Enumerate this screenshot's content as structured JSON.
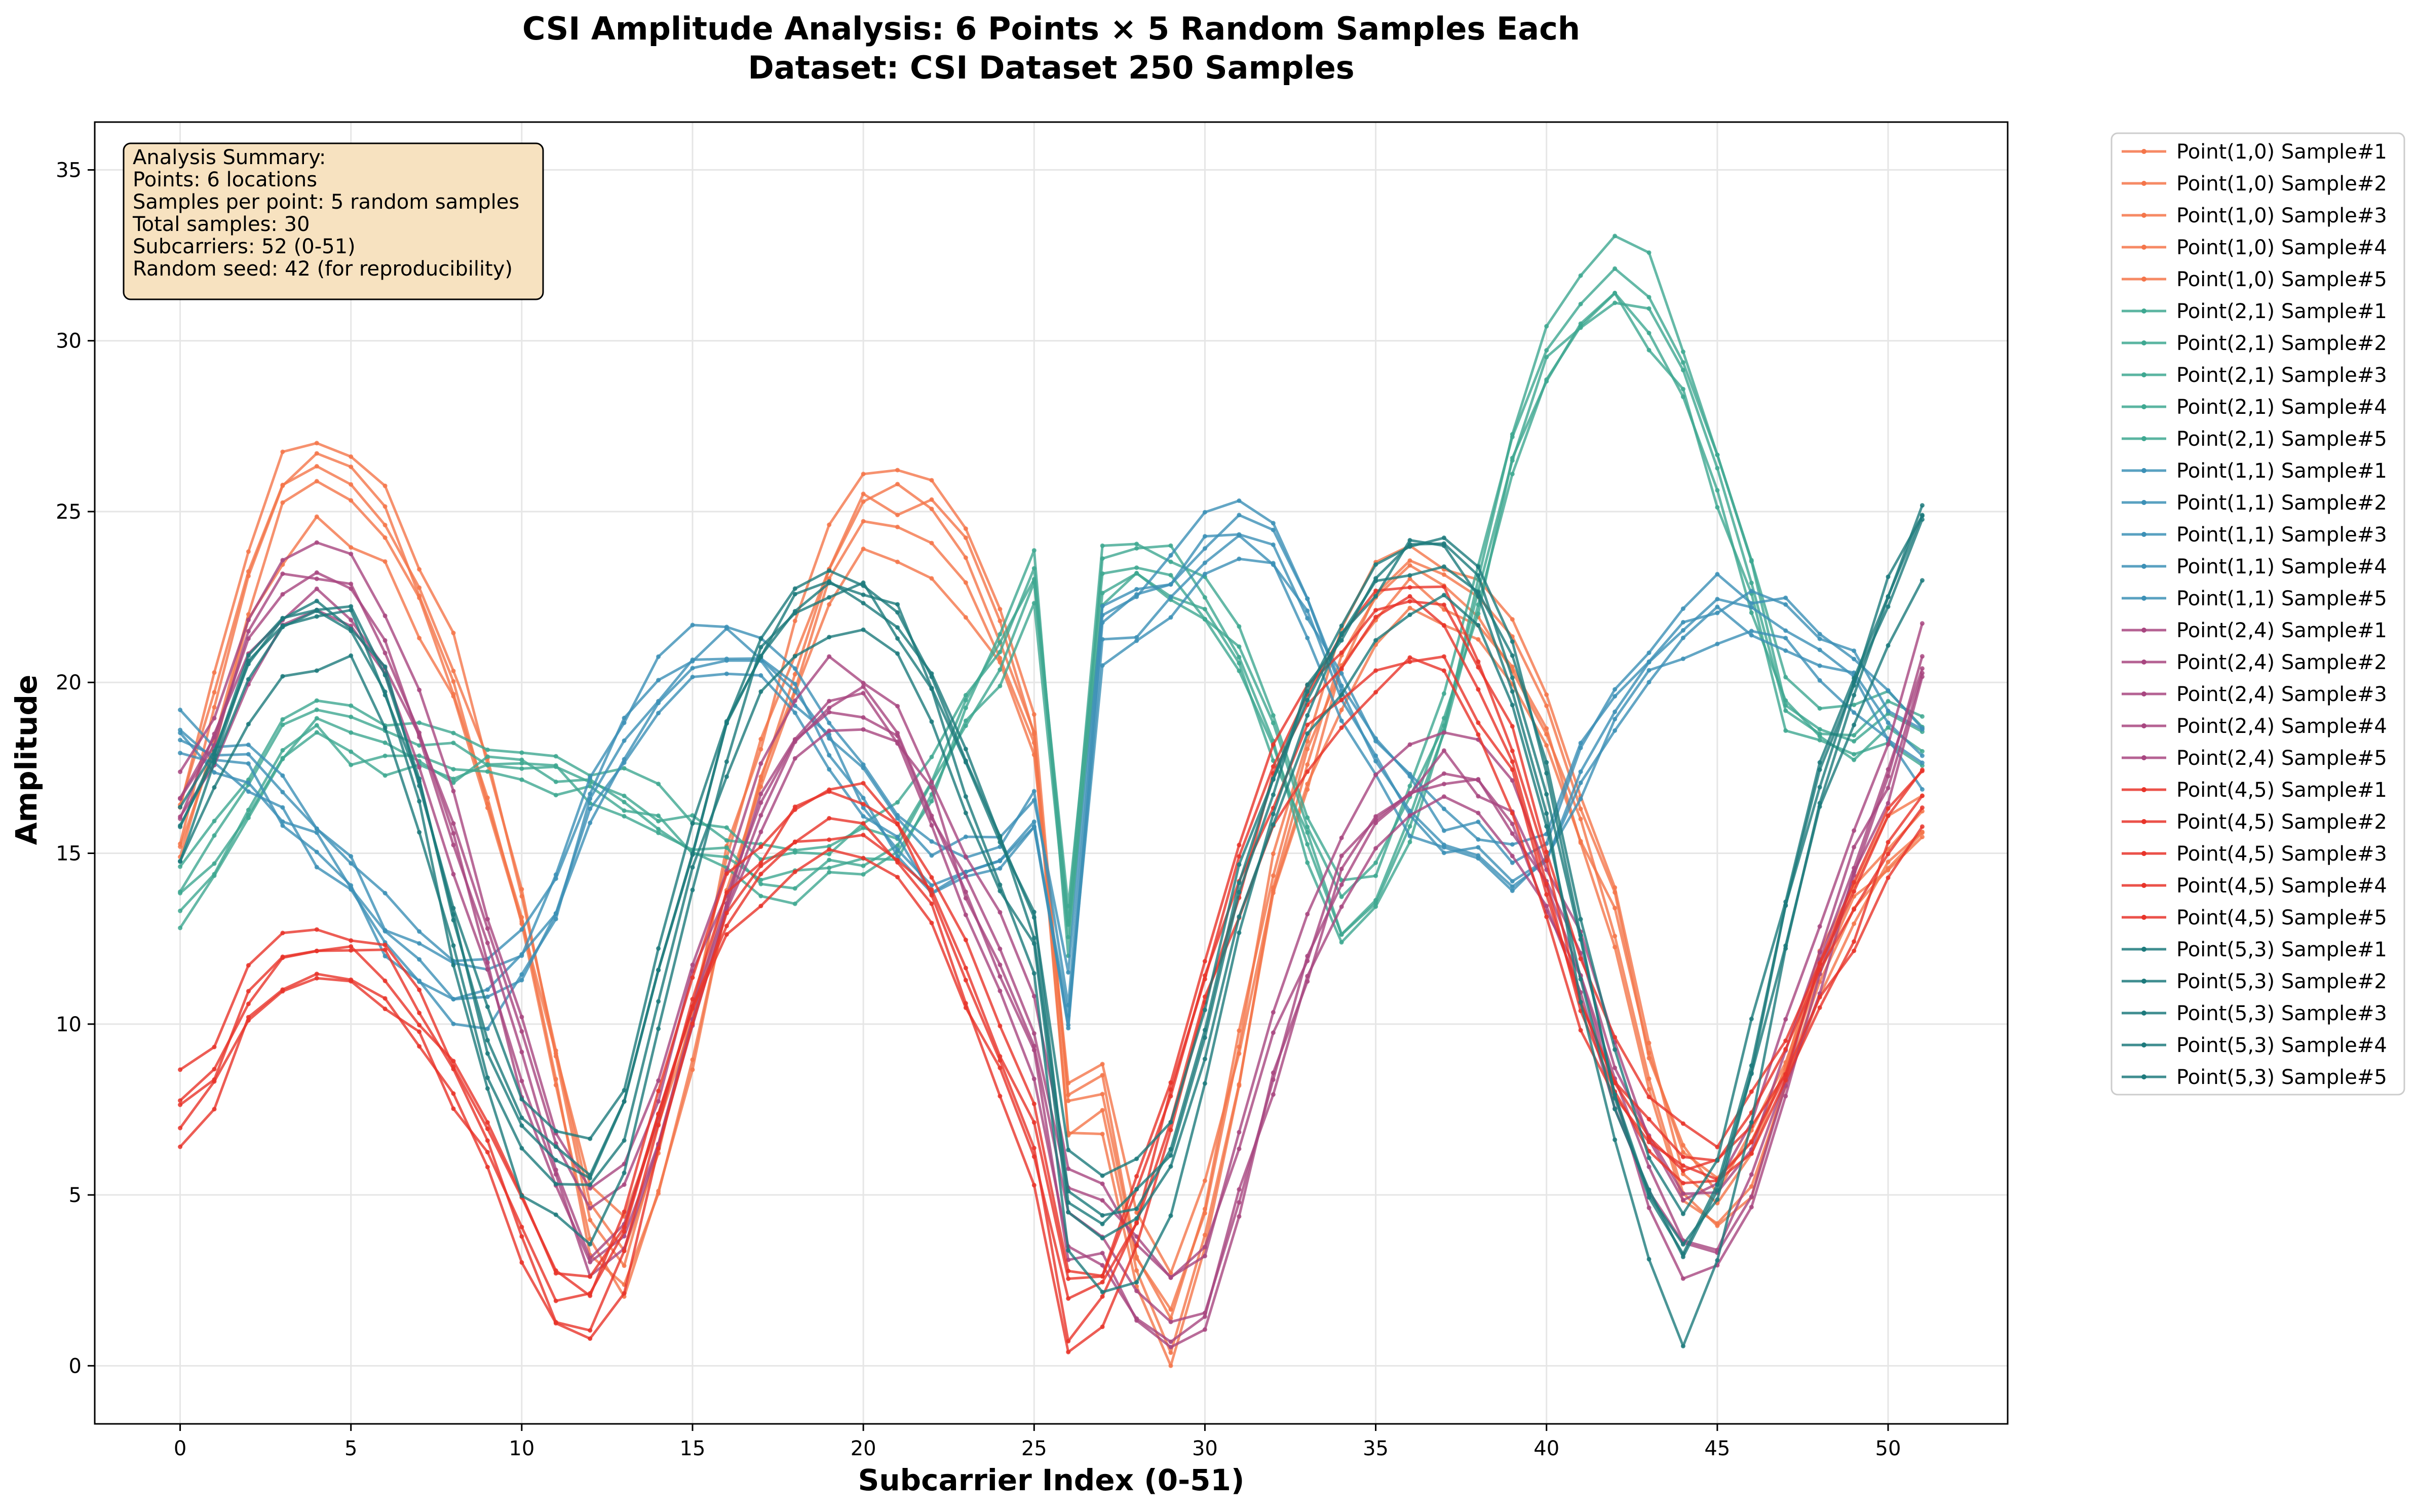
{
  "chart_data": {
    "type": "line",
    "title_line1": "CSI Amplitude Analysis: 6 Points × 5 Random Samples Each",
    "title_line2": "Dataset: CSI Dataset 250 Samples",
    "xlabel": "Subcarrier Index (0-51)",
    "ylabel": "Amplitude",
    "xlim": [
      -2.5,
      53.5
    ],
    "ylim": [
      -1.7,
      36.4
    ],
    "xticks": [
      0,
      5,
      10,
      15,
      20,
      25,
      30,
      35,
      40,
      45,
      50
    ],
    "yticks": [
      0,
      5,
      10,
      15,
      20,
      25,
      30,
      35
    ],
    "grid": true,
    "legend_placement": "outside-right",
    "summary": {
      "heading": "Analysis Summary:",
      "lines": [
        "Points: 6 locations",
        "Samples per point: 5 random samples",
        "Total samples: 30",
        "Subcarriers: 52 (0-51)",
        "Random seed: 42 (for reproducibility)"
      ]
    },
    "groups": [
      {
        "point": "Point(1,0)",
        "color": "#f4754a",
        "samples": [
          "Point(1,0) Sample#1",
          "Point(1,0) Sample#2",
          "Point(1,0) Sample#3",
          "Point(1,0) Sample#4",
          "Point(1,0) Sample#5"
        ],
        "base": [
          16.0,
          19.5,
          23.0,
          25.6,
          26.3,
          26.1,
          25.0,
          23.0,
          20.5,
          17.3,
          13.5,
          9.0,
          4.8,
          3.5,
          6.5,
          10.0,
          14.5,
          18.0,
          20.8,
          23.5,
          25.2,
          25.3,
          25.1,
          23.8,
          21.5,
          18.8,
          8.0,
          8.3,
          3.5,
          1.5,
          4.5,
          9.5,
          14.5,
          18.0,
          20.8,
          22.5,
          23.5,
          23.0,
          22.3,
          21.0,
          19.0,
          16.5,
          13.5,
          9.0,
          6.0,
          5.3,
          6.5,
          9.0,
          12.0,
          14.0,
          15.5,
          16.5
        ]
      },
      {
        "point": "Point(2,1)",
        "color": "#3ea891",
        "samples": [
          "Point(2,1) Sample#1",
          "Point(2,1) Sample#2",
          "Point(2,1) Sample#3",
          "Point(2,1) Sample#4",
          "Point(2,1) Sample#5"
        ],
        "base": [
          13.0,
          14.5,
          16.0,
          17.8,
          18.5,
          18.0,
          17.5,
          17.5,
          17.2,
          17.2,
          17.2,
          17.0,
          16.5,
          16.0,
          15.5,
          15.0,
          14.5,
          14.0,
          13.8,
          14.0,
          14.5,
          15.0,
          16.5,
          18.5,
          20.5,
          23.0,
          12.0,
          23.0,
          23.2,
          23.0,
          22.0,
          20.5,
          18.0,
          15.0,
          12.5,
          13.5,
          15.5,
          18.5,
          22.5,
          26.5,
          29.5,
          31.0,
          32.0,
          31.0,
          29.0,
          26.0,
          22.5,
          19.0,
          18.0,
          18.0,
          18.5,
          18.0
        ]
      },
      {
        "point": "Point(1,1)",
        "color": "#3c90b6",
        "samples": [
          "Point(1,1) Sample#1",
          "Point(1,1) Sample#2",
          "Point(1,1) Sample#3",
          "Point(1,1) Sample#4",
          "Point(1,1) Sample#5"
        ],
        "base": [
          18.5,
          18.0,
          17.5,
          16.5,
          15.5,
          14.0,
          12.5,
          11.5,
          10.8,
          10.5,
          11.5,
          13.5,
          16.5,
          18.5,
          20.0,
          21.0,
          21.2,
          21.0,
          20.0,
          18.5,
          17.0,
          15.5,
          14.5,
          14.5,
          15.0,
          16.0,
          10.0,
          22.0,
          22.5,
          23.5,
          24.5,
          25.0,
          24.5,
          22.5,
          20.0,
          18.0,
          16.5,
          15.5,
          15.0,
          14.5,
          15.0,
          17.5,
          19.5,
          21.0,
          22.0,
          22.5,
          22.5,
          22.0,
          21.5,
          20.5,
          19.0,
          18.0
        ]
      },
      {
        "point": "Point(2,4)",
        "color": "#a84680",
        "samples": [
          "Point(2,4) Sample#1",
          "Point(2,4) Sample#2",
          "Point(2,4) Sample#3",
          "Point(2,4) Sample#4",
          "Point(2,4) Sample#5"
        ],
        "base": [
          16.5,
          18.5,
          21.0,
          22.5,
          23.0,
          22.5,
          21.0,
          18.5,
          15.5,
          12.5,
          9.0,
          6.0,
          3.8,
          4.5,
          7.5,
          11.0,
          14.0,
          16.5,
          18.5,
          19.5,
          19.5,
          18.5,
          16.5,
          14.0,
          12.0,
          9.5,
          4.5,
          4.0,
          2.5,
          1.5,
          2.5,
          5.5,
          9.0,
          12.0,
          14.5,
          16.0,
          17.0,
          17.5,
          17.0,
          16.0,
          14.0,
          11.5,
          8.5,
          6.0,
          4.0,
          4.0,
          6.0,
          9.0,
          12.0,
          15.0,
          17.5,
          20.5
        ]
      },
      {
        "point": "Point(4,5)",
        "color": "#e8342a",
        "samples": [
          "Point(4,5) Sample#1",
          "Point(4,5) Sample#2",
          "Point(4,5) Sample#3",
          "Point(4,5) Sample#4",
          "Point(4,5) Sample#5"
        ],
        "base": [
          7.5,
          8.5,
          10.8,
          12.0,
          12.5,
          12.3,
          11.8,
          10.5,
          8.5,
          6.5,
          4.0,
          2.0,
          1.5,
          3.5,
          7.5,
          11.0,
          13.5,
          15.0,
          16.2,
          16.5,
          16.5,
          15.5,
          14.0,
          11.5,
          9.0,
          6.5,
          1.5,
          2.0,
          4.5,
          8.0,
          11.5,
          14.5,
          17.5,
          19.5,
          21.0,
          22.0,
          22.5,
          22.0,
          20.5,
          18.0,
          14.5,
          11.0,
          8.5,
          7.0,
          6.0,
          6.0,
          7.0,
          9.0,
          11.5,
          13.5,
          15.5,
          17.5
        ]
      },
      {
        "point": "Point(5,3)",
        "color": "#1d7a7c",
        "samples": [
          "Point(5,3) Sample#1",
          "Point(5,3) Sample#2",
          "Point(5,3) Sample#3",
          "Point(5,3) Sample#4",
          "Point(5,3) Sample#5"
        ],
        "base": [
          15.0,
          17.5,
          20.0,
          21.5,
          21.8,
          21.5,
          19.5,
          16.5,
          12.5,
          8.5,
          6.0,
          5.0,
          4.5,
          6.5,
          10.5,
          14.5,
          18.0,
          20.5,
          22.0,
          22.5,
          22.5,
          21.5,
          19.5,
          17.0,
          14.5,
          12.0,
          4.0,
          3.0,
          3.5,
          5.0,
          9.0,
          13.0,
          16.5,
          19.0,
          21.0,
          22.5,
          23.5,
          23.5,
          22.5,
          20.0,
          16.5,
          11.5,
          7.0,
          4.0,
          2.0,
          4.0,
          8.0,
          12.5,
          16.5,
          19.5,
          22.0,
          24.5
        ]
      }
    ]
  }
}
